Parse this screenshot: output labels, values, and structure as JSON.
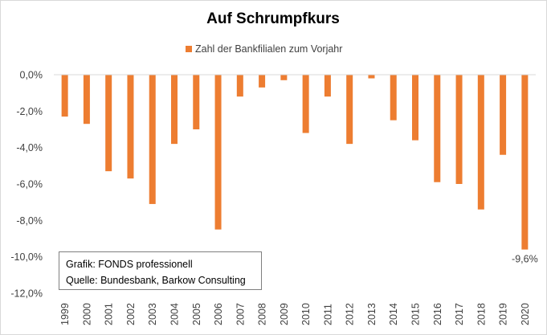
{
  "chart_data": {
    "type": "bar",
    "title": "Auf Schrumpfkurs",
    "series": [
      {
        "name": "Zahl der Bankfilialen zum Vorjahr",
        "color": "#ED7D31",
        "values": [
          -2.3,
          -2.7,
          -5.3,
          -5.7,
          -7.1,
          -3.8,
          -3.0,
          -8.5,
          -1.2,
          -0.7,
          -0.3,
          -3.2,
          -1.2,
          -3.8,
          -0.2,
          -2.5,
          -3.6,
          -5.9,
          -6.0,
          -7.4,
          -4.4,
          -9.6
        ]
      }
    ],
    "categories": [
      "1999",
      "2000",
      "2001",
      "2002",
      "2003",
      "2004",
      "2005",
      "2006",
      "2007",
      "2008",
      "2009",
      "2010",
      "2011",
      "2012",
      "2013",
      "2014",
      "2015",
      "2016",
      "2017",
      "2018",
      "2019",
      "2020"
    ],
    "ylim": [
      -12,
      0
    ],
    "yticks": [
      0,
      -2,
      -4,
      -6,
      -8,
      -10,
      -12
    ],
    "ytick_labels": [
      "0,0%",
      "-2,0%",
      "-4,0%",
      "-6,0%",
      "-8,0%",
      "-10,0%",
      "-12,0%"
    ],
    "grid": false,
    "legend_position": "top",
    "data_labels": [
      {
        "category": "2020",
        "text": "-9,6%"
      }
    ]
  },
  "source_box": {
    "line1": "Grafik: FONDS professionell",
    "line2": "Quelle: Bundesbank, Barkow Consulting"
  }
}
